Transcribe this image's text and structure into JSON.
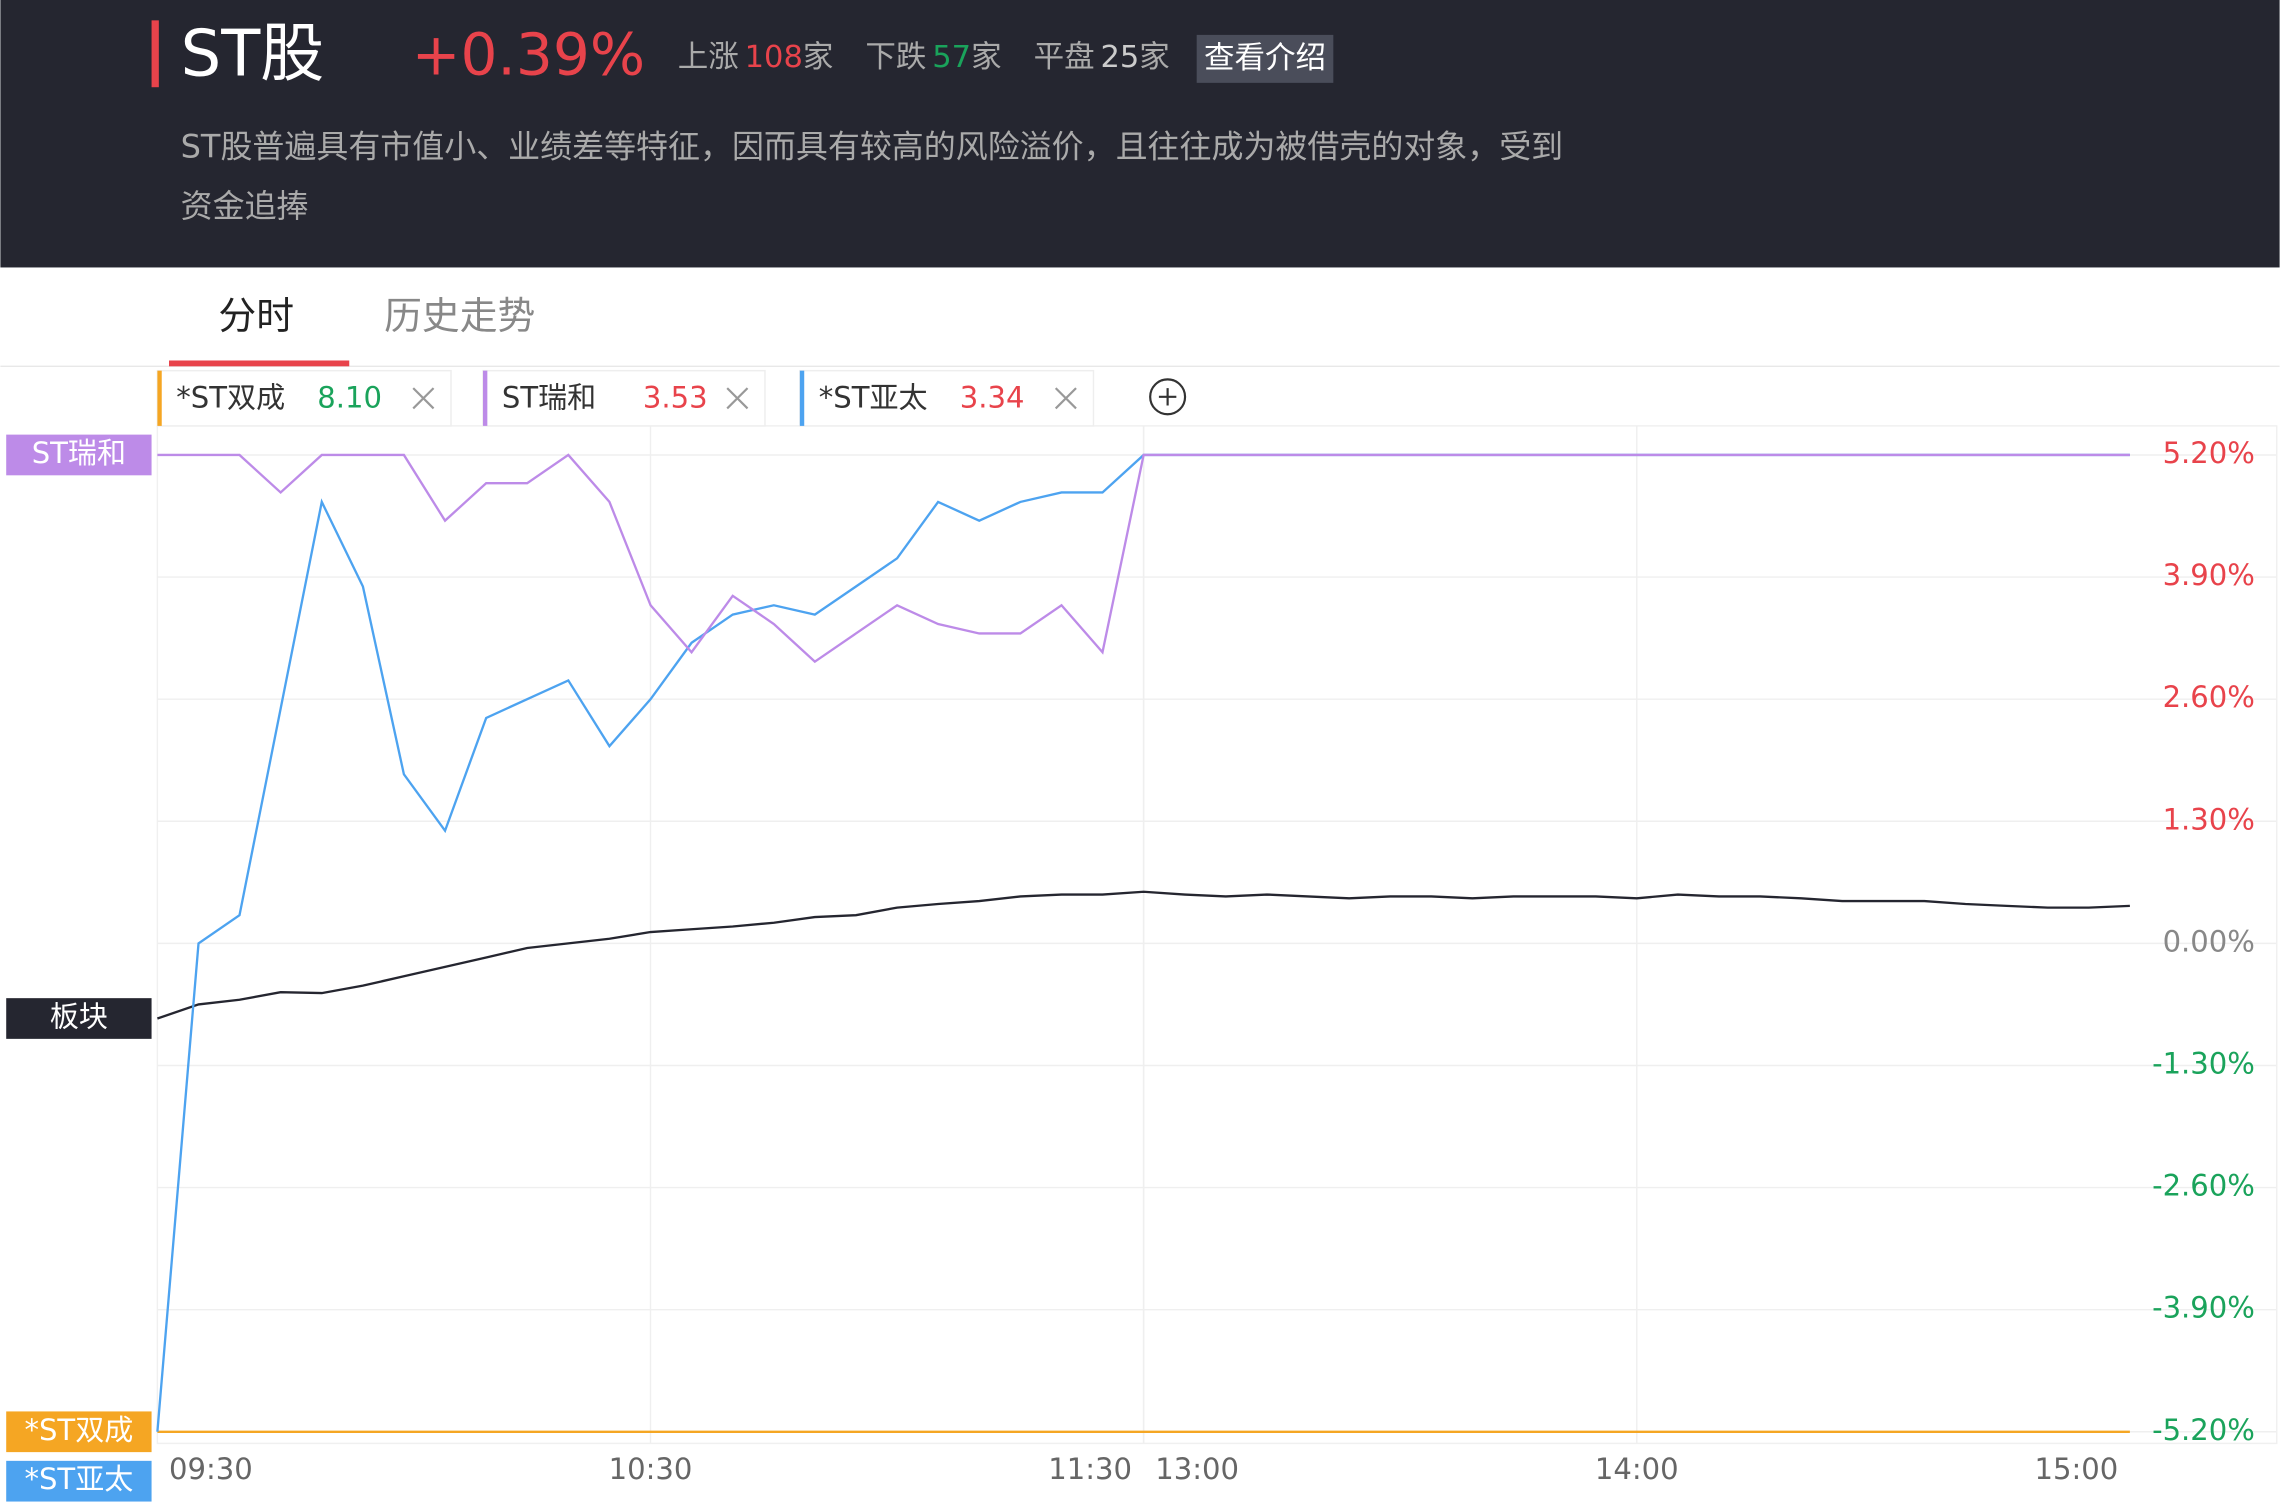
{
  "header": {
    "title": "ST股",
    "change": "+0.39%",
    "stats": [
      {
        "label": "上涨",
        "count": 108,
        "unit": "家",
        "color": "#e8434b"
      },
      {
        "label": "下跌",
        "count": 57,
        "unit": "家",
        "color": "#1aa35b"
      },
      {
        "label": "平盘",
        "count": 25,
        "unit": "家",
        "color": "#cccccc"
      }
    ],
    "button": "查看介绍",
    "description": [
      "ST股普遍具有市值小、业绩差等特征，因而具有较高的风险溢价，且往往成为被借壳的对象，受到",
      "资金追捧"
    ]
  },
  "tabs": [
    "分时",
    "历史走势"
  ],
  "chart_data": {
    "type": "line",
    "x": [
      "09:30",
      "09:35",
      "09:40",
      "09:45",
      "09:50",
      "09:55",
      "10:00",
      "10:05",
      "10:10",
      "10:15",
      "10:20",
      "10:25",
      "10:30",
      "10:35",
      "10:40",
      "10:45",
      "10:50",
      "10:55",
      "11:00",
      "11:05",
      "11:10",
      "11:15",
      "11:20",
      "11:25",
      "11:30",
      "13:05",
      "13:10",
      "13:15",
      "13:20",
      "13:25",
      "13:30",
      "13:35",
      "13:40",
      "13:45",
      "13:50",
      "13:55",
      "14:00",
      "14:05",
      "14:10",
      "14:15",
      "14:20",
      "14:25",
      "14:30",
      "14:35",
      "14:40",
      "14:45",
      "14:50",
      "14:55",
      "15:00"
    ],
    "xticks": [
      "09:30",
      "10:30",
      "11:30",
      "13:00",
      "14:00",
      "15:00"
    ],
    "ylim": [
      -5.2,
      5.2
    ],
    "yticks": [
      {
        "value": 5.2,
        "label": "5.20%"
      },
      {
        "value": 3.9,
        "label": "3.90%"
      },
      {
        "value": 2.6,
        "label": "2.60%"
      },
      {
        "value": 1.3,
        "label": "1.30%"
      },
      {
        "value": 0,
        "label": "0.00%"
      },
      {
        "value": -1.3,
        "label": "-1.30%"
      },
      {
        "value": -2.6,
        "label": "-2.60%"
      },
      {
        "value": -3.9,
        "label": "-3.90%"
      },
      {
        "value": -5.2,
        "label": "-5.20%"
      }
    ],
    "up_color": "#e8434b",
    "down_color": "#1aa35b",
    "flat_color": "#888888",
    "grid": true,
    "series": [
      {
        "name": "*ST双成",
        "price": "8.10",
        "price_color": "#1aa35b",
        "color": "#f5a623",
        "values": [
          -5.2,
          -5.2,
          -5.2,
          -5.2,
          -5.2,
          -5.2,
          -5.2,
          -5.2,
          -5.2,
          -5.2,
          -5.2,
          -5.2,
          -5.2,
          -5.2,
          -5.2,
          -5.2,
          -5.2,
          -5.2,
          -5.2,
          -5.2,
          -5.2,
          -5.2,
          -5.2,
          -5.2,
          -5.2,
          -5.2,
          -5.2,
          -5.2,
          -5.2,
          -5.2,
          -5.2,
          -5.2,
          -5.2,
          -5.2,
          -5.2,
          -5.2,
          -5.2,
          -5.2,
          -5.2,
          -5.2,
          -5.2,
          -5.2,
          -5.2,
          -5.2,
          -5.2,
          -5.2,
          -5.2,
          -5.2,
          -5.2
        ]
      },
      {
        "name": "ST瑞和",
        "price": "3.53",
        "price_color": "#e8434b",
        "color": "#bd8be8",
        "values": [
          5.2,
          5.2,
          5.2,
          4.8,
          5.2,
          5.2,
          5.2,
          4.5,
          4.9,
          4.9,
          5.2,
          4.7,
          3.6,
          3.1,
          3.7,
          3.4,
          3.0,
          3.3,
          3.6,
          3.4,
          3.3,
          3.3,
          3.6,
          3.1,
          5.2,
          5.2,
          5.2,
          5.2,
          5.2,
          5.2,
          5.2,
          5.2,
          5.2,
          5.2,
          5.2,
          5.2,
          5.2,
          5.2,
          5.2,
          5.2,
          5.2,
          5.2,
          5.2,
          5.2,
          5.2,
          5.2,
          5.2,
          5.2,
          5.2
        ]
      },
      {
        "name": "*ST亚太",
        "price": "3.34",
        "price_color": "#e8434b",
        "color": "#4da3f0",
        "values": [
          -5.2,
          0,
          0.3,
          2.5,
          4.7,
          3.8,
          1.8,
          1.2,
          2.4,
          2.6,
          2.8,
          2.1,
          2.6,
          3.2,
          3.5,
          3.6,
          3.5,
          3.8,
          4.1,
          4.7,
          4.5,
          4.7,
          4.8,
          4.8,
          5.2,
          5.2,
          5.2,
          5.2,
          5.2,
          5.2,
          5.2,
          5.2,
          5.2,
          5.2,
          5.2,
          5.2,
          5.2,
          5.2,
          5.2,
          5.2,
          5.2,
          5.2,
          5.2,
          5.2,
          5.2,
          5.2,
          5.2,
          5.2,
          5.2
        ]
      },
      {
        "name": "板块",
        "color": "#252630",
        "values": [
          -0.8,
          -0.65,
          -0.6,
          -0.52,
          -0.53,
          -0.45,
          -0.35,
          -0.25,
          -0.15,
          -0.05,
          0.0,
          0.05,
          0.12,
          0.15,
          0.18,
          0.22,
          0.28,
          0.3,
          0.38,
          0.42,
          0.45,
          0.5,
          0.52,
          0.52,
          0.55,
          0.52,
          0.5,
          0.52,
          0.5,
          0.48,
          0.5,
          0.5,
          0.48,
          0.5,
          0.5,
          0.5,
          0.48,
          0.52,
          0.5,
          0.5,
          0.48,
          0.45,
          0.45,
          0.45,
          0.42,
          0.4,
          0.38,
          0.38,
          0.4
        ]
      }
    ]
  }
}
